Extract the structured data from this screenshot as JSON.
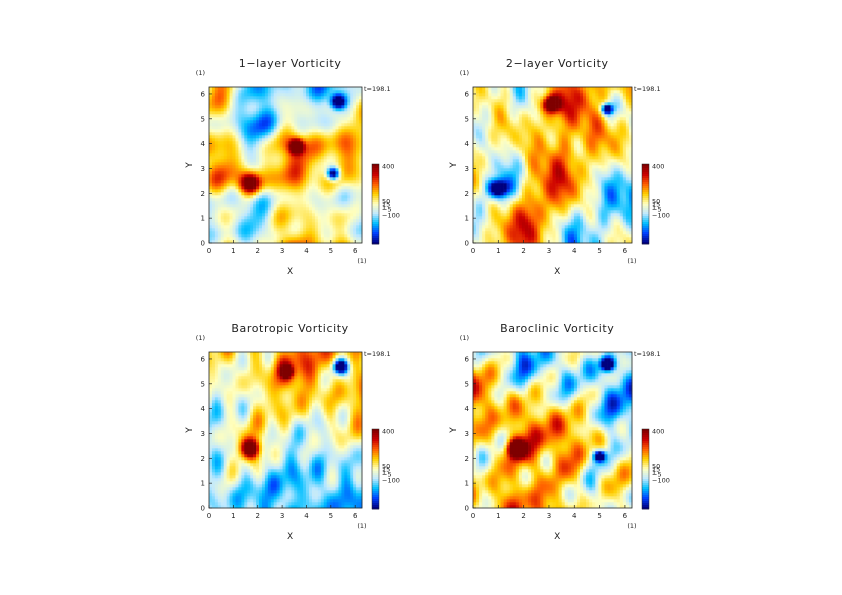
{
  "figure": {
    "time_label": "t=198.1"
  },
  "chart_data": [
    {
      "type": "heatmap",
      "title": "1−layer Vorticity",
      "xlabel": "X",
      "ylabel": "Y",
      "x_unit": "(1)",
      "y_unit": "(1)",
      "xlim": [
        0,
        6.28
      ],
      "ylim": [
        0,
        6.28
      ],
      "xticks": [
        "0",
        "1",
        "2",
        "3",
        "4",
        "5",
        "6"
      ],
      "yticks": [
        "0",
        "1",
        "2",
        "3",
        "4",
        "5",
        "6"
      ],
      "colorbar": {
        "labels": [
          "400",
          "50",
          "15",
          "1",
          "−5",
          "−100"
        ],
        "values": [
          400,
          50,
          15,
          1,
          -5,
          -100
        ]
      },
      "colormap": [
        "#00007f",
        "#0040ff",
        "#00bfff",
        "#bfe8ff",
        "#ffffbf",
        "#ffd000",
        "#ff6000",
        "#cc0000",
        "#7f0000"
      ],
      "features": [
        {
          "x": 1.7,
          "y": 2.4,
          "r": 0.3,
          "sign": "pos"
        },
        {
          "x": 5.3,
          "y": 5.7,
          "r": 0.22,
          "sign": "neg"
        },
        {
          "x": 3.6,
          "y": 3.9,
          "r": 0.2,
          "sign": "pos"
        },
        {
          "x": 5.1,
          "y": 2.8,
          "r": 0.18,
          "sign": "neg"
        }
      ],
      "background_bias": 0.0
    },
    {
      "type": "heatmap",
      "title": "2−layer Vorticity",
      "xlabel": "X",
      "ylabel": "Y",
      "x_unit": "(1)",
      "y_unit": "(1)",
      "xlim": [
        0,
        6.28
      ],
      "ylim": [
        0,
        6.28
      ],
      "xticks": [
        "0",
        "1",
        "2",
        "3",
        "4",
        "5",
        "6"
      ],
      "yticks": [
        "0",
        "1",
        "2",
        "3",
        "4",
        "5",
        "6"
      ],
      "colorbar": {
        "labels": [
          "400",
          "50",
          "15",
          "1",
          "−5",
          "−100"
        ],
        "values": [
          400,
          50,
          15,
          1,
          -5,
          -100
        ]
      },
      "colormap": [
        "#00007f",
        "#0040ff",
        "#00bfff",
        "#bfe8ff",
        "#ffffbf",
        "#ffd000",
        "#ff6000",
        "#cc0000",
        "#7f0000"
      ],
      "features": [
        {
          "x": 3.1,
          "y": 5.6,
          "r": 0.22,
          "sign": "pos"
        },
        {
          "x": 5.3,
          "y": 5.4,
          "r": 0.15,
          "sign": "neg"
        },
        {
          "x": 1.0,
          "y": 2.2,
          "r": 0.25,
          "sign": "neg"
        }
      ],
      "background_bias": 0.08
    },
    {
      "type": "heatmap",
      "title": "Barotropic Vorticity",
      "xlabel": "X",
      "ylabel": "Y",
      "x_unit": "(1)",
      "y_unit": "(1)",
      "xlim": [
        0,
        6.28
      ],
      "ylim": [
        0,
        6.28
      ],
      "xticks": [
        "0",
        "1",
        "2",
        "3",
        "4",
        "5",
        "6"
      ],
      "yticks": [
        "0",
        "1",
        "2",
        "3",
        "4",
        "5",
        "6"
      ],
      "colorbar": {
        "labels": [
          "400",
          "50",
          "15",
          "1",
          "−5",
          "−100"
        ],
        "values": [
          400,
          50,
          15,
          1,
          -5,
          -100
        ]
      },
      "colormap": [
        "#00007f",
        "#0040ff",
        "#00bfff",
        "#bfe8ff",
        "#ffffbf",
        "#ffd000",
        "#ff6000",
        "#cc0000",
        "#7f0000"
      ],
      "features": [
        {
          "x": 1.7,
          "y": 2.4,
          "r": 0.28,
          "sign": "pos"
        },
        {
          "x": 5.4,
          "y": 5.7,
          "r": 0.2,
          "sign": "neg"
        },
        {
          "x": 3.2,
          "y": 5.5,
          "r": 0.15,
          "sign": "pos"
        }
      ],
      "background_bias": -0.1
    },
    {
      "type": "heatmap",
      "title": "Baroclinic Vorticity",
      "xlabel": "X",
      "ylabel": "Y",
      "x_unit": "(1)",
      "y_unit": "(1)",
      "xlim": [
        0,
        6.28
      ],
      "ylim": [
        0,
        6.28
      ],
      "xticks": [
        "0",
        "1",
        "2",
        "3",
        "4",
        "5",
        "6"
      ],
      "yticks": [
        "0",
        "1",
        "2",
        "3",
        "4",
        "5",
        "6"
      ],
      "colorbar": {
        "labels": [
          "400",
          "50",
          "15",
          "1",
          "−5",
          "−100"
        ],
        "values": [
          400,
          50,
          15,
          1,
          -5,
          -100
        ]
      },
      "colormap": [
        "#00007f",
        "#0040ff",
        "#00bfff",
        "#bfe8ff",
        "#ffffbf",
        "#ffd000",
        "#ff6000",
        "#cc0000",
        "#7f0000"
      ],
      "features": [
        {
          "x": 1.7,
          "y": 2.4,
          "r": 0.25,
          "sign": "pos"
        },
        {
          "x": 5.3,
          "y": 5.8,
          "r": 0.18,
          "sign": "neg"
        },
        {
          "x": 5.0,
          "y": 2.1,
          "r": 0.15,
          "sign": "neg"
        }
      ],
      "background_bias": 0.03
    }
  ]
}
